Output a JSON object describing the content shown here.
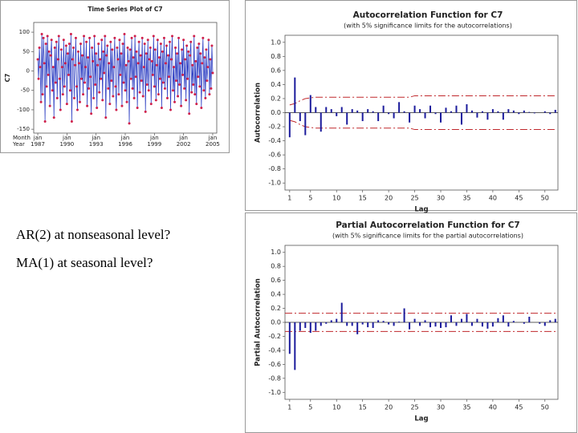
{
  "chart_data": [
    {
      "type": "line",
      "title": "Time Series Plot of C7",
      "y_label": "C7",
      "x_row_labels": [
        "Month",
        "Year"
      ],
      "line_color": "#3344c4",
      "marker_color": "#d0204a",
      "xlim": [
        -5,
        221
      ],
      "xticks": [
        {
          "value": 0,
          "label": "jan",
          "year": "1987"
        },
        {
          "value": 36,
          "label": "jan",
          "year": "1990"
        },
        {
          "value": 72,
          "label": "jan",
          "year": "1993"
        },
        {
          "value": 108,
          "label": "jan",
          "year": "1996"
        },
        {
          "value": 144,
          "label": "jan",
          "year": "1999"
        },
        {
          "value": 180,
          "label": "jan",
          "year": "2002"
        },
        {
          "value": 216,
          "label": "jan",
          "year": "2005"
        }
      ],
      "ylim": [
        -160,
        125
      ],
      "yticks": [
        100,
        50,
        0,
        -50,
        -100,
        -150
      ],
      "values": [
        30,
        -20,
        60,
        10,
        -80,
        95,
        -60,
        85,
        20,
        -130,
        70,
        -40,
        90,
        -10,
        50,
        -90,
        40,
        80,
        -50,
        10,
        -120,
        60,
        -30,
        75,
        -70,
        30,
        90,
        -20,
        -100,
        55,
        10,
        -60,
        80,
        -40,
        20,
        65,
        -85,
        45,
        -10,
        70,
        -50,
        95,
        -130,
        30,
        60,
        -70,
        15,
        85,
        -40,
        -100,
        50,
        20,
        -80,
        70,
        -20,
        40,
        -60,
        90,
        -30,
        10,
        75,
        -90,
        35,
        -45,
        85,
        -15,
        -110,
        60,
        25,
        -70,
        90,
        -35,
        45,
        -95,
        15,
        70,
        -55,
        30,
        -20,
        80,
        -75,
        50,
        -5,
        90,
        -120,
        40,
        65,
        -45,
        20,
        -85,
        75,
        -25,
        55,
        -65,
        10,
        85,
        -40,
        -100,
        60,
        30,
        -60,
        80,
        -10,
        45,
        -90,
        70,
        -30,
        95,
        -50,
        15,
        -80,
        60,
        25,
        -135,
        55,
        -20,
        85,
        -45,
        35,
        -70,
        90,
        -15,
        50,
        -95,
        20,
        75,
        -55,
        40,
        -25,
        85,
        -65,
        10,
        70,
        -105,
        45,
        -35,
        80,
        -50,
        30,
        60,
        -85,
        25,
        -10,
        90,
        -40,
        55,
        -75,
        15,
        80,
        -60,
        35,
        -20,
        70,
        -95,
        50,
        -30,
        85,
        -45,
        20,
        65,
        -70,
        40,
        -15,
        75,
        -100,
        30,
        90,
        -50,
        10,
        -80,
        60,
        -25,
        45,
        -65,
        85,
        -35,
        20,
        -90,
        55,
        -10,
        80,
        -45,
        30,
        -75,
        65,
        -20,
        50,
        -110,
        40,
        75,
        -55,
        15,
        -35,
        90,
        -60,
        25,
        -85,
        60,
        -15,
        70,
        -40,
        45,
        -95,
        20,
        85,
        -50,
        35,
        -70,
        55,
        -25,
        10,
        80,
        -60,
        30,
        -45,
        65,
        -5
      ]
    },
    {
      "type": "bar",
      "title": "Autocorrelation Function for C7",
      "subtitle": "(with 5% significance limits for the autocorrelations)",
      "x_label": "Lag",
      "y_label": "Autocorrelation",
      "color": "#1c1c9c",
      "limit_color": "#c0282c",
      "xlim": [
        0.1,
        52.5
      ],
      "xticks": [
        1,
        5,
        10,
        15,
        20,
        25,
        30,
        35,
        40,
        45,
        50
      ],
      "ylim": [
        -1.1,
        1.1
      ],
      "yticks": [
        {
          "value": 1,
          "label": "1.0"
        },
        0.8,
        0.6,
        0.4,
        0.2,
        {
          "value": 0,
          "label": "0.0"
        },
        -0.2,
        -0.4,
        -0.6,
        -0.8,
        {
          "value": -1,
          "label": "-1.0"
        }
      ],
      "lags": [
        1,
        2,
        3,
        4,
        5,
        6,
        7,
        8,
        9,
        10,
        11,
        12,
        13,
        14,
        15,
        16,
        17,
        18,
        19,
        20,
        21,
        22,
        23,
        24,
        25,
        26,
        27,
        28,
        29,
        30,
        31,
        32,
        33,
        34,
        35,
        36,
        37,
        38,
        39,
        40,
        41,
        42,
        43,
        44,
        45,
        46,
        47,
        48,
        49,
        50,
        51,
        52
      ],
      "values": [
        -0.35,
        0.5,
        -0.12,
        -0.32,
        0.25,
        0.08,
        -0.27,
        0.08,
        0.05,
        -0.05,
        0.08,
        -0.17,
        0.05,
        0.03,
        -0.12,
        0.05,
        0.02,
        -0.12,
        0.1,
        -0.02,
        -0.08,
        0.15,
        0.02,
        -0.14,
        0.1,
        0.05,
        -0.08,
        0.1,
        -0.02,
        -0.14,
        0.07,
        0.02,
        0.1,
        -0.17,
        0.12,
        0.03,
        -0.07,
        0.02,
        -0.1,
        0.05,
        0.02,
        -0.1,
        0.05,
        0.03,
        -0.02,
        0.03,
        0.01,
        -0.01,
        0,
        0.02,
        -0.02,
        0.04
      ],
      "upper_limits": [
        0.11,
        0.13,
        0.17,
        0.2,
        0.21,
        0.22,
        0.22,
        0.22,
        0.22,
        0.22,
        0.22,
        0.22,
        0.22,
        0.22,
        0.22,
        0.22,
        0.22,
        0.22,
        0.22,
        0.22,
        0.22,
        0.22,
        0.22,
        0.22,
        0.24,
        0.24,
        0.24,
        0.24,
        0.24,
        0.24,
        0.24,
        0.24,
        0.24,
        0.24,
        0.24,
        0.24,
        0.24,
        0.24,
        0.24,
        0.24,
        0.24,
        0.24,
        0.24,
        0.24,
        0.24,
        0.24,
        0.24,
        0.24,
        0.24,
        0.24,
        0.24,
        0.24
      ],
      "lower_limits": [
        -0.11,
        -0.13,
        -0.17,
        -0.2,
        -0.21,
        -0.22,
        -0.22,
        -0.22,
        -0.22,
        -0.22,
        -0.22,
        -0.22,
        -0.22,
        -0.22,
        -0.22,
        -0.22,
        -0.22,
        -0.22,
        -0.22,
        -0.22,
        -0.22,
        -0.22,
        -0.22,
        -0.22,
        -0.24,
        -0.24,
        -0.24,
        -0.24,
        -0.24,
        -0.24,
        -0.24,
        -0.24,
        -0.24,
        -0.24,
        -0.24,
        -0.24,
        -0.24,
        -0.24,
        -0.24,
        -0.24,
        -0.24,
        -0.24,
        -0.24,
        -0.24,
        -0.24,
        -0.24,
        -0.24,
        -0.24,
        -0.24,
        -0.24,
        -0.24,
        -0.24
      ]
    },
    {
      "type": "bar",
      "title": "Partial Autocorrelation Function for C7",
      "subtitle": "(with 5% significance limits for the partial autocorrelations)",
      "x_label": "Lag",
      "y_label": "Partial Autocorrelation",
      "color": "#1c1c9c",
      "limit_color": "#c0282c",
      "xlim": [
        0.1,
        52.5
      ],
      "xticks": [
        1,
        5,
        10,
        15,
        20,
        25,
        30,
        35,
        40,
        45,
        50
      ],
      "ylim": [
        -1.1,
        1.1
      ],
      "yticks": [
        {
          "value": 1,
          "label": "1.0"
        },
        0.8,
        0.6,
        0.4,
        0.2,
        {
          "value": 0,
          "label": "0.0"
        },
        -0.2,
        -0.4,
        -0.6,
        -0.8,
        {
          "value": -1,
          "label": "-1.0"
        }
      ],
      "lags": [
        1,
        2,
        3,
        4,
        5,
        6,
        7,
        8,
        9,
        10,
        11,
        12,
        13,
        14,
        15,
        16,
        17,
        18,
        19,
        20,
        21,
        22,
        23,
        24,
        25,
        26,
        27,
        28,
        29,
        30,
        31,
        32,
        33,
        34,
        35,
        36,
        37,
        38,
        39,
        40,
        41,
        42,
        43,
        44,
        45,
        46,
        47,
        48,
        49,
        50,
        51,
        52
      ],
      "values": [
        -0.45,
        -0.68,
        -0.12,
        -0.08,
        -0.15,
        -0.12,
        -0.05,
        -0.02,
        0.03,
        0.05,
        0.28,
        -0.05,
        -0.05,
        -0.17,
        -0.03,
        -0.07,
        -0.08,
        0.03,
        0.02,
        -0.03,
        -0.05,
        0.01,
        0.2,
        -0.1,
        0.05,
        -0.05,
        0.03,
        -0.07,
        -0.06,
        -0.08,
        -0.07,
        0.1,
        -0.05,
        0.05,
        0.12,
        -0.05,
        0.05,
        -0.06,
        -0.09,
        -0.06,
        0.06,
        0.1,
        -0.06,
        0.02,
        0,
        -0.02,
        0.08,
        0,
        -0.02,
        -0.05,
        0.03,
        0.05
      ],
      "upper_limit": 0.13,
      "lower_limit": -0.13
    }
  ],
  "notes": [
    "AR(2) at nonseasonal level?",
    "MA(1) at seasonal level?"
  ]
}
